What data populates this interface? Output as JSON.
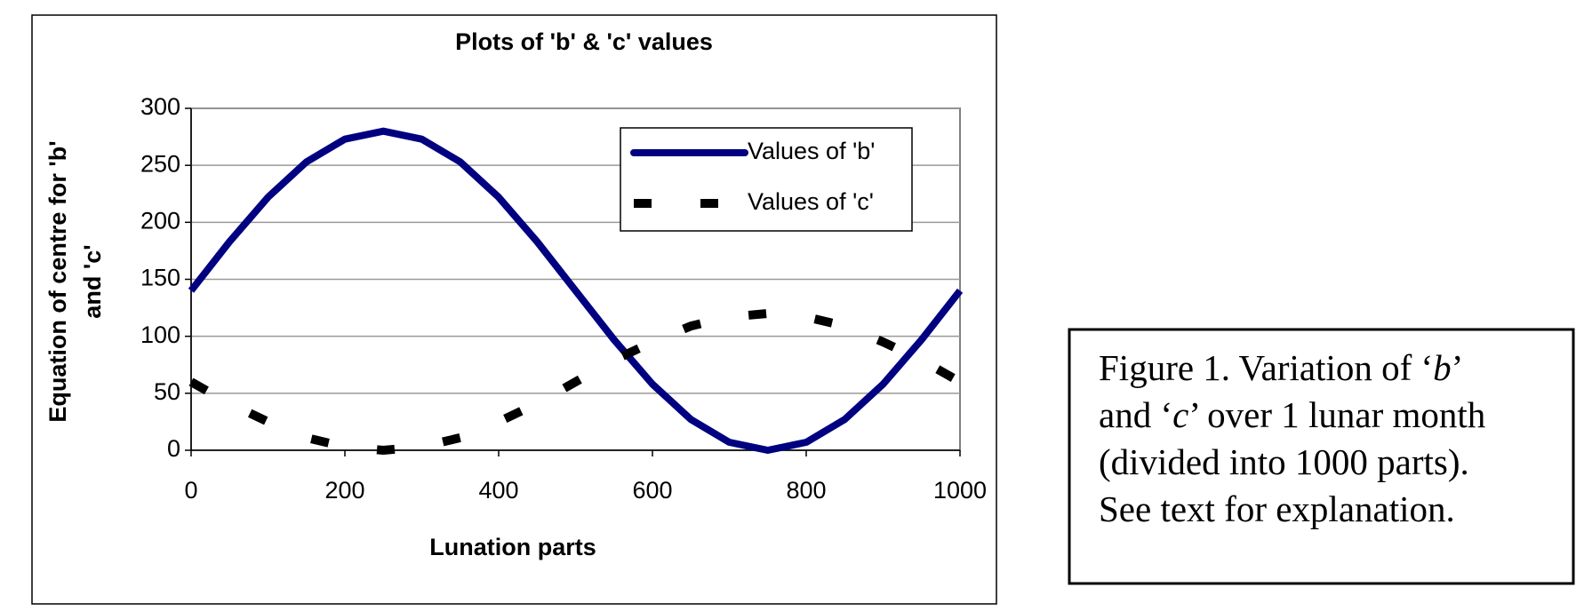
{
  "chart_data": {
    "type": "line",
    "title": "Plots of 'b' & 'c' values",
    "xlabel": "Lunation parts",
    "ylabel": [
      "Equation of centre for 'b'",
      "and 'c'"
    ],
    "x": [
      0,
      50,
      100,
      150,
      200,
      250,
      300,
      350,
      400,
      450,
      500,
      550,
      600,
      650,
      700,
      750,
      800,
      850,
      900,
      950,
      1000
    ],
    "series": [
      {
        "name": "Values of 'b'",
        "color": "#000080",
        "dashed": false,
        "values": [
          140,
          183,
          222,
          253,
          273,
          280,
          273,
          253,
          222,
          183,
          140,
          97,
          58,
          27,
          7,
          0,
          7,
          27,
          58,
          97,
          140
        ]
      },
      {
        "name": "Values of 'c'",
        "color": "#000000",
        "dashed": true,
        "values": [
          60,
          41,
          25,
          11,
          3,
          0,
          3,
          11,
          25,
          41,
          60,
          79,
          95,
          109,
          117,
          120,
          117,
          109,
          95,
          79,
          60
        ]
      }
    ],
    "xlim": [
      0,
      1000
    ],
    "xticks": [
      0,
      200,
      400,
      600,
      800,
      1000
    ],
    "ylim": [
      0,
      300
    ],
    "yticks": [
      0,
      50,
      100,
      150,
      200,
      250,
      300
    ],
    "grid": true,
    "legend": "upper right"
  },
  "caption": {
    "lines": [
      [
        {
          "text": "Figure 1. Variation of ‘",
          "italic": false
        },
        {
          "text": "b",
          "italic": true
        },
        {
          "text": "’",
          "italic": false
        }
      ],
      [
        {
          "text": "and ‘",
          "italic": false
        },
        {
          "text": "c",
          "italic": true
        },
        {
          "text": "’ over 1 lunar month",
          "italic": false
        }
      ],
      [
        {
          "text": "(divided into 1000 parts).",
          "italic": false
        }
      ],
      [
        {
          "text": "See text for explanation.",
          "italic": false
        }
      ]
    ]
  }
}
